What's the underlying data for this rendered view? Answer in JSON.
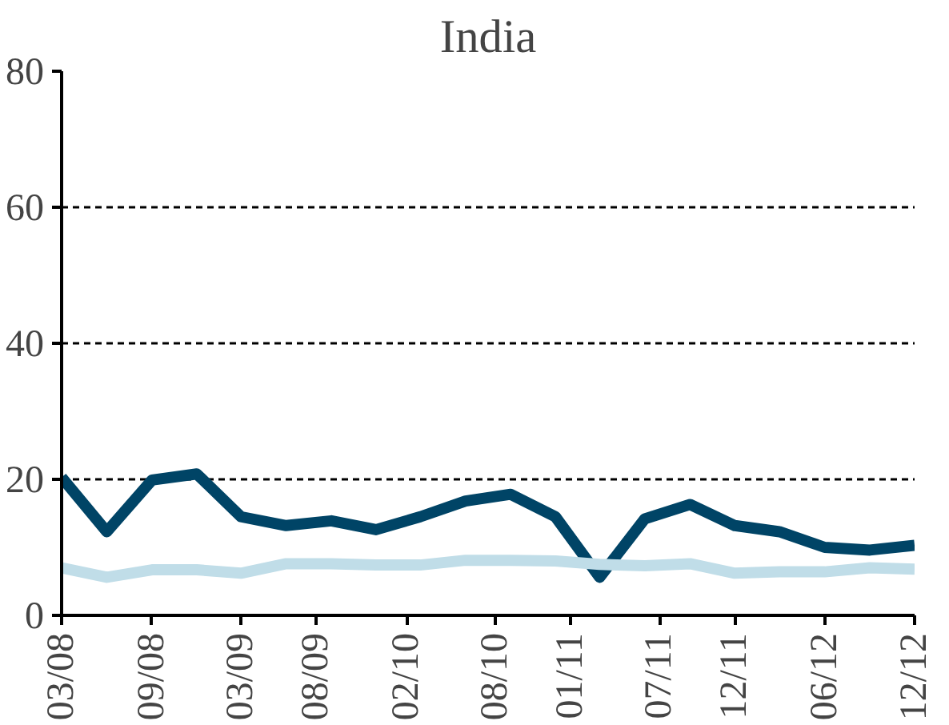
{
  "chart_data": {
    "type": "line",
    "title": "India",
    "x": [
      "2008-03",
      "2008-06",
      "2008-09",
      "2008-12",
      "2009-03",
      "2009-06",
      "2009-09",
      "2009-12",
      "2010-03",
      "2010-06",
      "2010-09",
      "2010-12",
      "2011-03",
      "2011-06",
      "2011-09",
      "2011-12",
      "2012-03",
      "2012-06",
      "2012-09",
      "2012-12"
    ],
    "series": [
      {
        "color": "#004466",
        "values": [
          20.3,
          12.3,
          19.9,
          20.8,
          14.5,
          13.2,
          13.9,
          12.6,
          14.5,
          16.8,
          17.8,
          14.5,
          5.6,
          14.2,
          16.3,
          13.2,
          12.3,
          10,
          9.6,
          10.3
        ]
      },
      {
        "color": "#c0dde8",
        "values": [
          7,
          5.6,
          6.7,
          6.7,
          6.2,
          7.6,
          7.6,
          7.4,
          7.4,
          8.1,
          8.1,
          8,
          7.5,
          7.3,
          7.6,
          6.2,
          6.4,
          6.4,
          7,
          6.8
        ]
      }
    ],
    "xlim": [
      "2008-03",
      "2012-12"
    ],
    "xticks": [
      {
        "value": "2008-03",
        "label": "03/08"
      },
      {
        "value": "2008-09",
        "label": "09/08"
      },
      {
        "value": "2009-03",
        "label": "03/09"
      },
      {
        "value": "2009-08",
        "label": "08/09"
      },
      {
        "value": "2010-02",
        "label": "02/10"
      },
      {
        "value": "2010-08",
        "label": "08/10"
      },
      {
        "value": "2011-01",
        "label": "01/11"
      },
      {
        "value": "2011-07",
        "label": "07/11"
      },
      {
        "value": "2011-12",
        "label": "12/11"
      },
      {
        "value": "2012-06",
        "label": "06/12"
      },
      {
        "value": "2012-12",
        "label": "12/12"
      }
    ],
    "ylim": [
      0,
      80
    ],
    "yticks": [
      0,
      20,
      40,
      60,
      80
    ],
    "grid": "y",
    "line_style": "solid"
  }
}
